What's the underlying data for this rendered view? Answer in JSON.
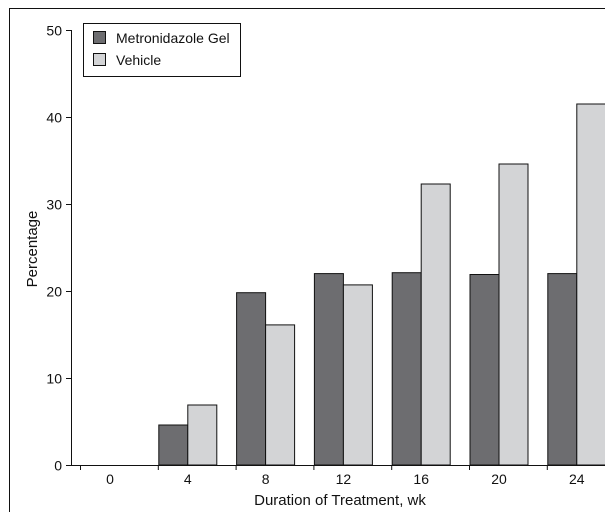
{
  "chart_data": {
    "type": "bar",
    "title": "",
    "xlabel": "Duration of Treatment, wk",
    "ylabel": "Percentage",
    "categories": [
      "0",
      "4",
      "8",
      "12",
      "16",
      "20",
      "24"
    ],
    "series": [
      {
        "name": "Metronidazole Gel",
        "color": "#6d6d70",
        "values": [
          0,
          4.6,
          19.8,
          22.0,
          22.1,
          21.9,
          22.0
        ]
      },
      {
        "name": "Vehicle",
        "color": "#d3d4d6",
        "values": [
          0,
          6.9,
          16.1,
          20.7,
          32.3,
          34.6,
          41.5
        ]
      }
    ],
    "ylim": [
      0,
      50
    ],
    "yticks": [
      0,
      10,
      20,
      30,
      40,
      50
    ],
    "grid": false,
    "legend_position": "top-left"
  }
}
